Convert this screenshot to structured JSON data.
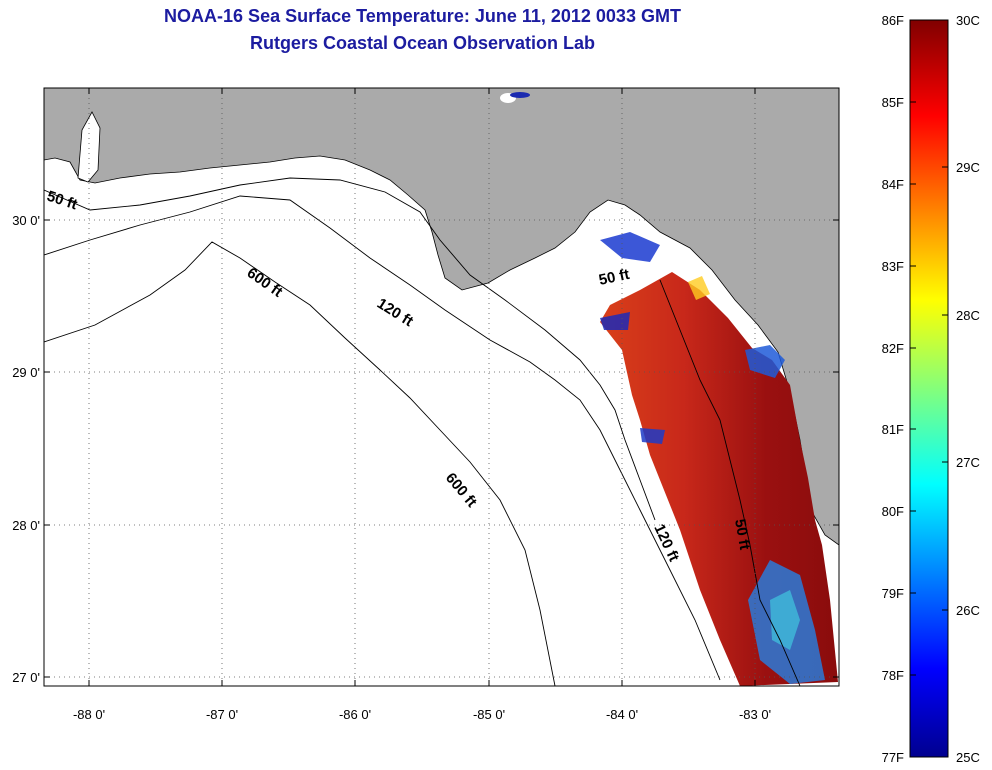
{
  "title": {
    "line1": "NOAA-16 Sea Surface Temperature:  June 11, 2012 0033 GMT",
    "line2": "Rutgers Coastal Ocean Observation Lab"
  },
  "map": {
    "x_ticks": [
      "-88 0'",
      "-87 0'",
      "-86 0'",
      "-85 0'",
      "-84 0'",
      "-83 0'"
    ],
    "y_ticks": [
      "30 0'",
      "29 0'",
      "28 0'",
      "27 0'"
    ],
    "lon_range": [
      -88.33,
      -82.33
    ],
    "lat_range": [
      26.97,
      30.85
    ],
    "contour_labels": [
      "50 ft",
      "600 ft",
      "120 ft",
      "50 ft",
      "600 ft",
      "120 ft",
      "50 ft"
    ],
    "land_color": "#aaaaaa",
    "ocean_color": "#ffffff"
  },
  "colorbar": {
    "f_labels": [
      "86F",
      "85F",
      "84F",
      "83F",
      "82F",
      "81F",
      "80F",
      "79F",
      "78F",
      "77F"
    ],
    "c_labels": [
      "30C",
      "29C",
      "28C",
      "27C",
      "26C",
      "25C"
    ],
    "range_c": [
      25,
      30
    ],
    "colormap": "jet"
  }
}
